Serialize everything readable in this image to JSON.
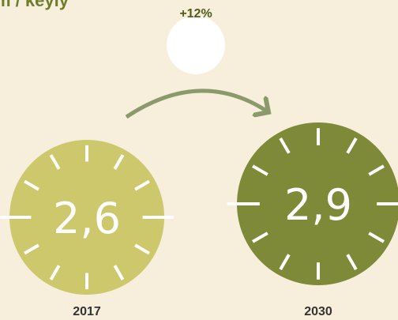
{
  "header": {
    "title": "m / keyly"
  },
  "change": {
    "label": "+12%"
  },
  "items": [
    {
      "year": "2017",
      "value": "2,6"
    },
    {
      "year": "2030",
      "value": "2,9"
    }
  ]
}
